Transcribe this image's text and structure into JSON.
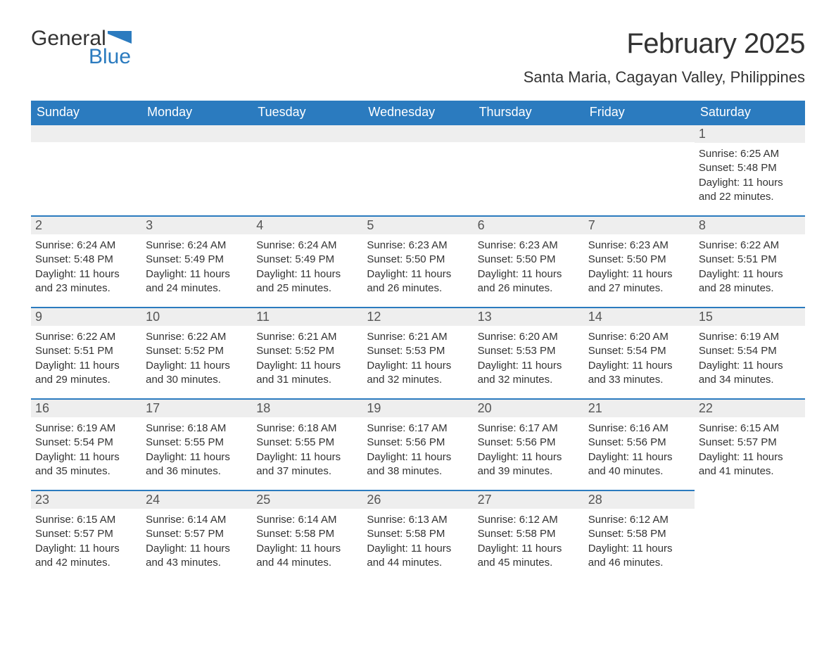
{
  "logo": {
    "word1": "General",
    "word2": "Blue",
    "flag_color": "#2b7bbf"
  },
  "title": "February 2025",
  "location": "Santa Maria, Cagayan Valley, Philippines",
  "colors": {
    "header_bg": "#2b7bbf",
    "header_fg": "#ffffff",
    "daynum_bg": "#eeeeee",
    "row_border": "#2b7bbf",
    "text": "#333333"
  },
  "day_headers": [
    "Sunday",
    "Monday",
    "Tuesday",
    "Wednesday",
    "Thursday",
    "Friday",
    "Saturday"
  ],
  "weeks": [
    [
      {
        "n": "",
        "sunrise": "",
        "sunset": "",
        "daylight": ""
      },
      {
        "n": "",
        "sunrise": "",
        "sunset": "",
        "daylight": ""
      },
      {
        "n": "",
        "sunrise": "",
        "sunset": "",
        "daylight": ""
      },
      {
        "n": "",
        "sunrise": "",
        "sunset": "",
        "daylight": ""
      },
      {
        "n": "",
        "sunrise": "",
        "sunset": "",
        "daylight": ""
      },
      {
        "n": "",
        "sunrise": "",
        "sunset": "",
        "daylight": ""
      },
      {
        "n": "1",
        "sunrise": "Sunrise: 6:25 AM",
        "sunset": "Sunset: 5:48 PM",
        "daylight": "Daylight: 11 hours and 22 minutes."
      }
    ],
    [
      {
        "n": "2",
        "sunrise": "Sunrise: 6:24 AM",
        "sunset": "Sunset: 5:48 PM",
        "daylight": "Daylight: 11 hours and 23 minutes."
      },
      {
        "n": "3",
        "sunrise": "Sunrise: 6:24 AM",
        "sunset": "Sunset: 5:49 PM",
        "daylight": "Daylight: 11 hours and 24 minutes."
      },
      {
        "n": "4",
        "sunrise": "Sunrise: 6:24 AM",
        "sunset": "Sunset: 5:49 PM",
        "daylight": "Daylight: 11 hours and 25 minutes."
      },
      {
        "n": "5",
        "sunrise": "Sunrise: 6:23 AM",
        "sunset": "Sunset: 5:50 PM",
        "daylight": "Daylight: 11 hours and 26 minutes."
      },
      {
        "n": "6",
        "sunrise": "Sunrise: 6:23 AM",
        "sunset": "Sunset: 5:50 PM",
        "daylight": "Daylight: 11 hours and 26 minutes."
      },
      {
        "n": "7",
        "sunrise": "Sunrise: 6:23 AM",
        "sunset": "Sunset: 5:50 PM",
        "daylight": "Daylight: 11 hours and 27 minutes."
      },
      {
        "n": "8",
        "sunrise": "Sunrise: 6:22 AM",
        "sunset": "Sunset: 5:51 PM",
        "daylight": "Daylight: 11 hours and 28 minutes."
      }
    ],
    [
      {
        "n": "9",
        "sunrise": "Sunrise: 6:22 AM",
        "sunset": "Sunset: 5:51 PM",
        "daylight": "Daylight: 11 hours and 29 minutes."
      },
      {
        "n": "10",
        "sunrise": "Sunrise: 6:22 AM",
        "sunset": "Sunset: 5:52 PM",
        "daylight": "Daylight: 11 hours and 30 minutes."
      },
      {
        "n": "11",
        "sunrise": "Sunrise: 6:21 AM",
        "sunset": "Sunset: 5:52 PM",
        "daylight": "Daylight: 11 hours and 31 minutes."
      },
      {
        "n": "12",
        "sunrise": "Sunrise: 6:21 AM",
        "sunset": "Sunset: 5:53 PM",
        "daylight": "Daylight: 11 hours and 32 minutes."
      },
      {
        "n": "13",
        "sunrise": "Sunrise: 6:20 AM",
        "sunset": "Sunset: 5:53 PM",
        "daylight": "Daylight: 11 hours and 32 minutes."
      },
      {
        "n": "14",
        "sunrise": "Sunrise: 6:20 AM",
        "sunset": "Sunset: 5:54 PM",
        "daylight": "Daylight: 11 hours and 33 minutes."
      },
      {
        "n": "15",
        "sunrise": "Sunrise: 6:19 AM",
        "sunset": "Sunset: 5:54 PM",
        "daylight": "Daylight: 11 hours and 34 minutes."
      }
    ],
    [
      {
        "n": "16",
        "sunrise": "Sunrise: 6:19 AM",
        "sunset": "Sunset: 5:54 PM",
        "daylight": "Daylight: 11 hours and 35 minutes."
      },
      {
        "n": "17",
        "sunrise": "Sunrise: 6:18 AM",
        "sunset": "Sunset: 5:55 PM",
        "daylight": "Daylight: 11 hours and 36 minutes."
      },
      {
        "n": "18",
        "sunrise": "Sunrise: 6:18 AM",
        "sunset": "Sunset: 5:55 PM",
        "daylight": "Daylight: 11 hours and 37 minutes."
      },
      {
        "n": "19",
        "sunrise": "Sunrise: 6:17 AM",
        "sunset": "Sunset: 5:56 PM",
        "daylight": "Daylight: 11 hours and 38 minutes."
      },
      {
        "n": "20",
        "sunrise": "Sunrise: 6:17 AM",
        "sunset": "Sunset: 5:56 PM",
        "daylight": "Daylight: 11 hours and 39 minutes."
      },
      {
        "n": "21",
        "sunrise": "Sunrise: 6:16 AM",
        "sunset": "Sunset: 5:56 PM",
        "daylight": "Daylight: 11 hours and 40 minutes."
      },
      {
        "n": "22",
        "sunrise": "Sunrise: 6:15 AM",
        "sunset": "Sunset: 5:57 PM",
        "daylight": "Daylight: 11 hours and 41 minutes."
      }
    ],
    [
      {
        "n": "23",
        "sunrise": "Sunrise: 6:15 AM",
        "sunset": "Sunset: 5:57 PM",
        "daylight": "Daylight: 11 hours and 42 minutes."
      },
      {
        "n": "24",
        "sunrise": "Sunrise: 6:14 AM",
        "sunset": "Sunset: 5:57 PM",
        "daylight": "Daylight: 11 hours and 43 minutes."
      },
      {
        "n": "25",
        "sunrise": "Sunrise: 6:14 AM",
        "sunset": "Sunset: 5:58 PM",
        "daylight": "Daylight: 11 hours and 44 minutes."
      },
      {
        "n": "26",
        "sunrise": "Sunrise: 6:13 AM",
        "sunset": "Sunset: 5:58 PM",
        "daylight": "Daylight: 11 hours and 44 minutes."
      },
      {
        "n": "27",
        "sunrise": "Sunrise: 6:12 AM",
        "sunset": "Sunset: 5:58 PM",
        "daylight": "Daylight: 11 hours and 45 minutes."
      },
      {
        "n": "28",
        "sunrise": "Sunrise: 6:12 AM",
        "sunset": "Sunset: 5:58 PM",
        "daylight": "Daylight: 11 hours and 46 minutes."
      },
      {
        "n": "",
        "sunrise": "",
        "sunset": "",
        "daylight": ""
      }
    ]
  ]
}
